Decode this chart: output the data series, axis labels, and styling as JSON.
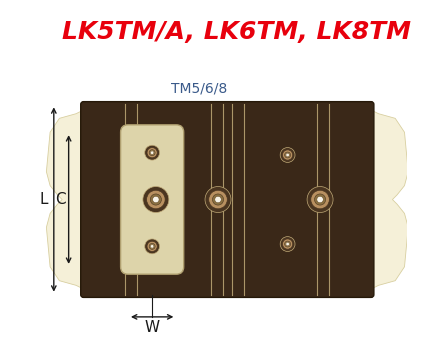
{
  "title": "LK5TM/A, LK6TM, LK8TM",
  "title_color": "#e8000d",
  "title_fontsize": 18,
  "title_fontweight": "bold",
  "tm_label": "TM5/6/8",
  "tm_label_color": "#3a5a8a",
  "tm_label_fontsize": 10,
  "background_color": "#ffffff",
  "chain_color": "#3a2818",
  "bumper_color": "#f5f0d8",
  "bumper_edge": "#d8cfa0",
  "link_plate_color": "#ddd4aa",
  "link_plate_edge": "#b0a070",
  "groove_line_color": "#c0aa78",
  "dim_color": "#1a1a1a",
  "hole_outer": "#6a5030",
  "hole_mid": "#b89060",
  "hole_inner": "#f0e8d0",
  "hole_white": "#f8f4e8",
  "label_L": "L",
  "label_C": "C",
  "label_W": "W",
  "fig_w": 4.39,
  "fig_h": 3.49,
  "dpi": 100
}
